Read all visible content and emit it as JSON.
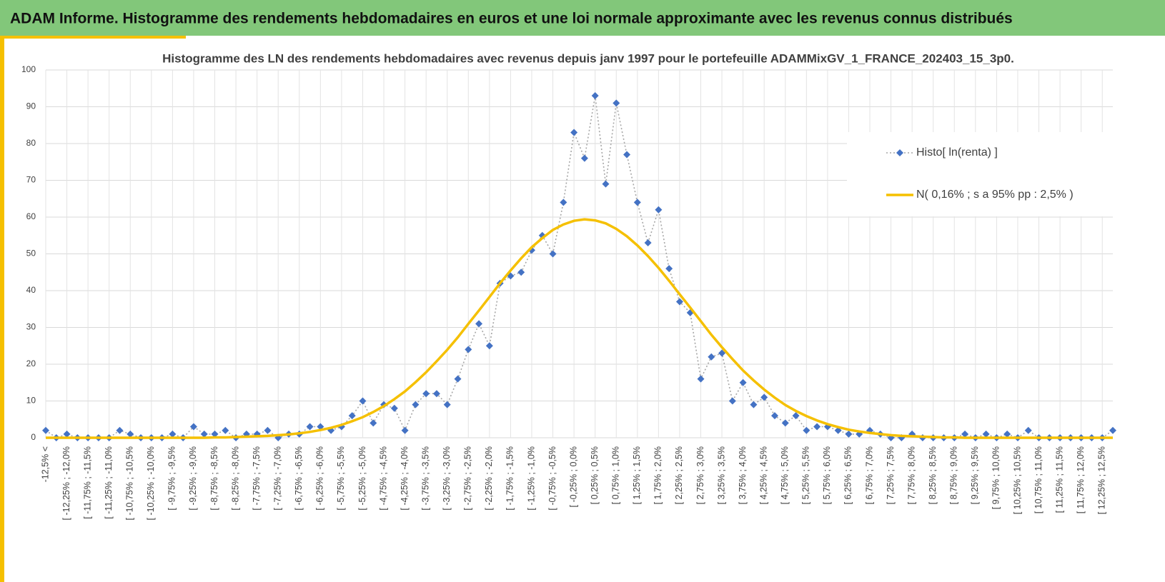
{
  "header": {
    "title": "ADAM Informe. Histogramme des rendements hebdomadaires en euros et une loi normale approximante avec les revenus connus distribués"
  },
  "chart_data": {
    "type": "line",
    "title": "Histogramme des LN des rendements hebdomadaires avec revenus depuis janv 1997 pour le portefeuille ADAMMixGV_1_FRANCE_202403_15_3p0.",
    "categories": [
      "-12,5% <",
      null,
      "[ -12,25% ; -12,0%",
      null,
      "[ -11,75% ; -11,5%",
      null,
      "[ -11,25% ; -11,0%",
      null,
      "[ -10,75% ; -10,5%",
      null,
      "[ -10,25% ; -10,0%",
      null,
      "[ -9,75% ; -9,5%",
      null,
      "[ -9,25% ; -9,0%",
      null,
      "[ -8,75% ; -8,5%",
      null,
      "[ -8,25% ; -8,0%",
      null,
      "[ -7,75% ; -7,5%",
      null,
      "[ -7,25% ; -7,0%",
      null,
      "[ -6,75% ; -6,5%",
      null,
      "[ -6,25% ; -6,0%",
      null,
      "[ -5,75% ; -5,5%",
      null,
      "[ -5,25% ; -5,0%",
      null,
      "[ -4,75% ; -4,5%",
      null,
      "[ -4,25% ; -4,0%",
      null,
      "[ -3,75% ; -3,5%",
      null,
      "[ -3,25% ; -3,0%",
      null,
      "[ -2,75% ; -2,5%",
      null,
      "[ -2,25% ; -2,0%",
      null,
      "[ -1,75% ; -1,5%",
      null,
      "[ -1,25% ; -1,0%",
      null,
      "[ -0,75% ; -0,5%",
      null,
      "[ -0,25% ; 0,0%",
      null,
      "[ 0,25% ; 0,5%",
      null,
      "[ 0,75% ; 1,0%",
      null,
      "[ 1,25% ; 1,5%",
      null,
      "[ 1,75% ; 2,0%",
      null,
      "[ 2,25% ; 2,5%",
      null,
      "[ 2,75% ; 3,0%",
      null,
      "[ 3,25% ; 3,5%",
      null,
      "[ 3,75% ; 4,0%",
      null,
      "[ 4,25% ; 4,5%",
      null,
      "[ 4,75% ; 5,0%",
      null,
      "[ 5,25% ; 5,5%",
      null,
      "[ 5,75% ; 6,0%",
      null,
      "[ 6,25% ; 6,5%",
      null,
      "[ 6,75% ; 7,0%",
      null,
      "[ 7,25% ; 7,5%",
      null,
      "[ 7,75% ; 8,0%",
      null,
      "[ 8,25% ; 8,5%",
      null,
      "[ 8,75% ; 9,0%",
      null,
      "[ 9,25% ; 9,5%",
      null,
      "[ 9,75% ; 10,0%",
      null,
      "[ 10,25% ; 10,5%",
      null,
      "[ 10,75% ; 11,0%",
      null,
      "[ 11,25% ; 11,5%",
      null,
      "[ 11,75% ; 12,0%",
      null,
      "[ 12,25% ; 12,5%",
      null
    ],
    "series": [
      {
        "name": "Histo[ ln(renta) ]",
        "color": "#4472c4",
        "line_color": "#a6a6a6",
        "dashed": true,
        "markers": true,
        "values": [
          2,
          0,
          1,
          0,
          0,
          0,
          0,
          2,
          1,
          0,
          0,
          0,
          1,
          0,
          3,
          1,
          1,
          2,
          0,
          1,
          1,
          2,
          0,
          1,
          1,
          3,
          3,
          2,
          3,
          6,
          10,
          4,
          9,
          8,
          2,
          9,
          12,
          12,
          9,
          16,
          24,
          31,
          25,
          42,
          44,
          45,
          51,
          55,
          50,
          64,
          83,
          76,
          93,
          69,
          91,
          77,
          64,
          53,
          62,
          46,
          37,
          34,
          16,
          22,
          23,
          10,
          15,
          9,
          11,
          6,
          4,
          6,
          2,
          3,
          3,
          2,
          1,
          1,
          2,
          1,
          0,
          0,
          1,
          0,
          0,
          0,
          0,
          1,
          0,
          1,
          0,
          1,
          0,
          2,
          0,
          0,
          0,
          0,
          0,
          0,
          0,
          2
        ]
      },
      {
        "name": "N( 0,16% ; s a 95% pp : 2,5% )",
        "color": "#f5c000",
        "line_color": "#f5c000",
        "dashed": false,
        "markers": false,
        "values": [
          0,
          0,
          0,
          0,
          0,
          0,
          0,
          0,
          0,
          0,
          0,
          0,
          0,
          0,
          0,
          0,
          0.1,
          0.1,
          0.2,
          0.3,
          0.4,
          0.5,
          0.7,
          0.9,
          1.2,
          1.6,
          2.1,
          2.7,
          3.5,
          4.5,
          5.6,
          7.0,
          8.6,
          10.5,
          12.6,
          15.1,
          17.8,
          20.8,
          23.9,
          27.3,
          31.0,
          34.6,
          38.3,
          42.0,
          45.5,
          48.8,
          51.8,
          54.3,
          56.5,
          58.0,
          59.0,
          59.4,
          59.1,
          58.3,
          56.8,
          54.8,
          52.3,
          49.4,
          46.2,
          42.7,
          39.0,
          35.4,
          31.7,
          28.0,
          24.6,
          21.4,
          18.3,
          15.6,
          13.1,
          10.9,
          8.9,
          7.3,
          5.9,
          4.7,
          3.7,
          2.9,
          2.2,
          1.7,
          1.3,
          1.0,
          0.7,
          0.5,
          0.4,
          0.3,
          0.2,
          0.1,
          0.1,
          0,
          0,
          0,
          0,
          0,
          0,
          0,
          0,
          0,
          0,
          0,
          0,
          0,
          0,
          0
        ]
      }
    ],
    "ylim": [
      0,
      100
    ],
    "yticks": [
      0,
      10,
      20,
      30,
      40,
      50,
      60,
      70,
      80,
      90,
      100
    ],
    "grid": true,
    "legend": "right"
  }
}
